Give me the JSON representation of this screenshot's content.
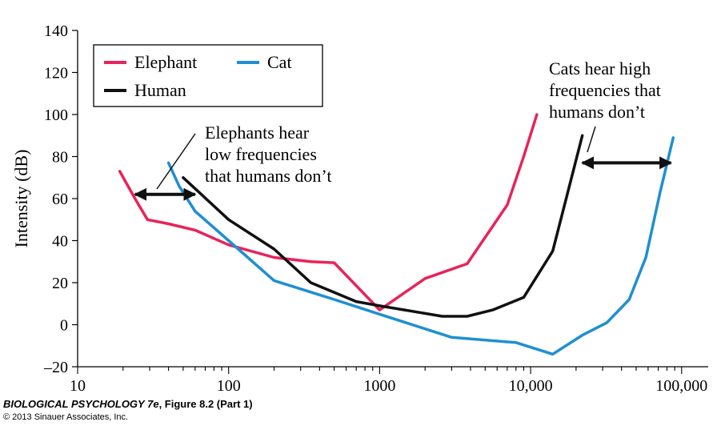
{
  "chart_data": {
    "type": "line",
    "xscale": "log",
    "xlim": [
      10,
      150000
    ],
    "ylim": [
      -20,
      140
    ],
    "ylabel": "Intensity (dB)",
    "xlabel": "",
    "x_ticks": [
      10,
      100,
      1000,
      10000,
      100000
    ],
    "x_tick_labels": [
      "10",
      "100",
      "1000",
      "10,000",
      "100,000"
    ],
    "y_ticks": [
      -20,
      0,
      20,
      40,
      60,
      80,
      100,
      120,
      140
    ],
    "y_tick_labels": [
      "–20",
      "0",
      "20",
      "40",
      "60",
      "80",
      "100",
      "120",
      "140"
    ],
    "grid": false,
    "legend_position": "top-left",
    "series": [
      {
        "name": "Elephant",
        "color": "#E8245A",
        "x": [
          19,
          24,
          29,
          40,
          60,
          100,
          200,
          350,
          500,
          1000,
          2000,
          3800,
          7000,
          9000,
          11000
        ],
        "y": [
          73,
          60,
          50,
          48,
          45,
          38,
          32,
          30,
          29.5,
          7,
          22,
          29,
          57,
          80,
          100
        ]
      },
      {
        "name": "Human",
        "color": "#111111",
        "x": [
          50,
          100,
          200,
          350,
          700,
          1000,
          2600,
          3800,
          5600,
          9000,
          14000,
          22000
        ],
        "y": [
          70,
          50,
          36,
          20,
          11,
          9,
          4,
          4,
          7,
          13,
          35,
          90
        ]
      },
      {
        "name": "Cat",
        "color": "#1F8FD1",
        "x": [
          40,
          47,
          60,
          100,
          200,
          500,
          1000,
          3000,
          8000,
          14000,
          22000,
          32000,
          45000,
          58000,
          72000,
          88000
        ],
        "y": [
          77,
          66,
          54,
          40,
          21,
          12,
          5,
          -6,
          -8.5,
          -14,
          -5,
          1,
          12,
          32,
          63,
          89
        ]
      }
    ],
    "annotations": [
      {
        "lines": [
          "Elephants hear",
          "low frequencies",
          "that humans don’t"
        ],
        "arrow_x_range": [
          24,
          60
        ],
        "arrow_y": 62
      },
      {
        "lines": [
          "Cats hear high",
          "frequencies that",
          "humans don’t"
        ],
        "arrow_x_range": [
          22000,
          85000
        ],
        "arrow_y": 77
      }
    ]
  },
  "credit": {
    "caption_title": "BIOLOGICAL PSYCHOLOGY 7e",
    "caption_rest": ", Figure 8.2 (Part 1)",
    "copyright": "© 2013 Sinauer Associates, Inc."
  }
}
